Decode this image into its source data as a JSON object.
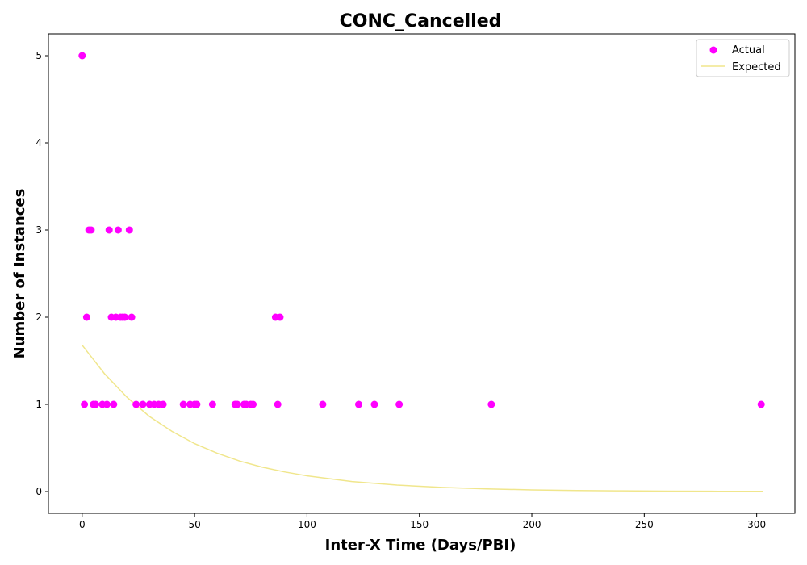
{
  "chart_data": {
    "type": "scatter",
    "title": "CONC_Cancelled",
    "xlabel": "Inter-X Time (Days/PBI)",
    "ylabel": "Number of Instances",
    "xlim": [
      -15,
      317
    ],
    "ylim": [
      -0.25,
      5.25
    ],
    "xticks": [
      0,
      50,
      100,
      150,
      200,
      250,
      300
    ],
    "yticks": [
      0,
      1,
      2,
      3,
      4,
      5
    ],
    "grid": false,
    "legend_position": "top-right",
    "series": [
      {
        "name": "Actual",
        "kind": "scatter",
        "color": "#ff00ff",
        "points": [
          [
            0,
            5
          ],
          [
            1,
            1
          ],
          [
            2,
            2
          ],
          [
            3,
            3
          ],
          [
            4,
            3
          ],
          [
            5,
            1
          ],
          [
            6,
            1
          ],
          [
            9,
            1
          ],
          [
            11,
            1
          ],
          [
            12,
            3
          ],
          [
            13,
            2
          ],
          [
            14,
            1
          ],
          [
            15,
            2
          ],
          [
            16,
            3
          ],
          [
            17,
            2
          ],
          [
            18,
            2
          ],
          [
            19,
            2
          ],
          [
            21,
            3
          ],
          [
            22,
            2
          ],
          [
            24,
            1
          ],
          [
            27,
            1
          ],
          [
            30,
            1
          ],
          [
            32,
            1
          ],
          [
            34,
            1
          ],
          [
            36,
            1
          ],
          [
            45,
            1
          ],
          [
            48,
            1
          ],
          [
            50,
            1
          ],
          [
            51,
            1
          ],
          [
            58,
            1
          ],
          [
            68,
            1
          ],
          [
            69,
            1
          ],
          [
            72,
            1
          ],
          [
            73,
            1
          ],
          [
            75,
            1
          ],
          [
            76,
            1
          ],
          [
            86,
            2
          ],
          [
            87,
            1
          ],
          [
            88,
            2
          ],
          [
            107,
            1
          ],
          [
            123,
            1
          ],
          [
            130,
            1
          ],
          [
            141,
            1
          ],
          [
            182,
            1
          ],
          [
            302,
            1
          ]
        ]
      },
      {
        "name": "Expected",
        "kind": "line",
        "color": "#f0e68c",
        "points": [
          [
            0,
            1.68
          ],
          [
            10,
            1.35
          ],
          [
            20,
            1.08
          ],
          [
            30,
            0.86
          ],
          [
            40,
            0.69
          ],
          [
            50,
            0.55
          ],
          [
            60,
            0.44
          ],
          [
            70,
            0.35
          ],
          [
            80,
            0.28
          ],
          [
            90,
            0.225
          ],
          [
            100,
            0.18
          ],
          [
            120,
            0.115
          ],
          [
            140,
            0.074
          ],
          [
            160,
            0.047
          ],
          [
            180,
            0.03
          ],
          [
            200,
            0.019
          ],
          [
            220,
            0.012
          ],
          [
            240,
            0.008
          ],
          [
            260,
            0.005
          ],
          [
            280,
            0.003
          ],
          [
            303,
            0.002
          ]
        ]
      }
    ]
  }
}
